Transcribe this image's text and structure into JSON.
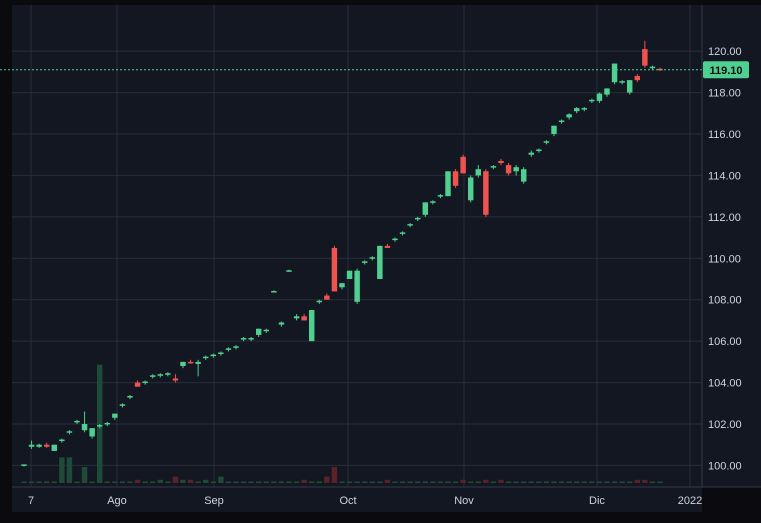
{
  "chart_data": {
    "type": "candlestick",
    "x_tick_labels": [
      "7",
      "Ago",
      "Sep",
      "Oct",
      "Nov",
      "Dic",
      "2022"
    ],
    "y_ticks": [
      100,
      102,
      104,
      106,
      108,
      110,
      112,
      114,
      116,
      118,
      120
    ],
    "y_tick_labels": [
      "100.00",
      "102.00",
      "104.00",
      "106.00",
      "108.00",
      "110.00",
      "112.00",
      "114.00",
      "116.00",
      "118.00",
      "120.00"
    ],
    "ylim": [
      99.2,
      121.6
    ],
    "last_price": 119.1,
    "last_price_label": "119.10",
    "grid": true,
    "colors": {
      "background": "#131722",
      "grid": "#2a2e39",
      "up": "#26a69a",
      "up_candle": "#4fd090",
      "down_candle": "#ef5350",
      "volume_up": "#1f4a3a",
      "volume_down": "#5a2228",
      "price_line": "#4fd090",
      "text": "#d1d4dc"
    },
    "candles": [
      {
        "o": 100.0,
        "h": 100.05,
        "l": 99.95,
        "c": 100.05,
        "v": 0
      },
      {
        "o": 100.9,
        "h": 101.2,
        "l": 100.8,
        "c": 101.0,
        "v": 0
      },
      {
        "o": 100.9,
        "h": 101.05,
        "l": 100.85,
        "c": 101.0,
        "v": 0
      },
      {
        "o": 101.0,
        "h": 101.1,
        "l": 100.85,
        "c": 100.9,
        "v": 0
      },
      {
        "o": 100.7,
        "h": 101.0,
        "l": 100.7,
        "c": 101.0,
        "v": 0
      },
      {
        "o": 101.2,
        "h": 101.3,
        "l": 101.1,
        "c": 101.25,
        "v": 8
      },
      {
        "o": 101.6,
        "h": 101.7,
        "l": 101.5,
        "c": 101.65,
        "v": 8
      },
      {
        "o": 102.1,
        "h": 102.2,
        "l": 102.0,
        "c": 102.15,
        "v": 0
      },
      {
        "o": 101.7,
        "h": 102.6,
        "l": 101.6,
        "c": 102.0,
        "v": 5
      },
      {
        "o": 101.4,
        "h": 101.8,
        "l": 101.3,
        "c": 101.8,
        "v": 0
      },
      {
        "o": 101.9,
        "h": 102.0,
        "l": 101.8,
        "c": 101.95,
        "v": 37
      },
      {
        "o": 102.0,
        "h": 102.1,
        "l": 101.9,
        "c": 102.05,
        "v": 0
      },
      {
        "o": 102.3,
        "h": 102.5,
        "l": 102.2,
        "c": 102.5,
        "v": 0
      },
      {
        "o": 102.9,
        "h": 103.0,
        "l": 102.8,
        "c": 102.95,
        "v": 0
      },
      {
        "o": 103.3,
        "h": 103.4,
        "l": 103.2,
        "c": 103.35,
        "v": 0
      },
      {
        "o": 104.0,
        "h": 104.1,
        "l": 103.8,
        "c": 103.8,
        "v": -1
      },
      {
        "o": 104.0,
        "h": 104.1,
        "l": 103.9,
        "c": 104.05,
        "v": 0
      },
      {
        "o": 104.3,
        "h": 104.4,
        "l": 104.2,
        "c": 104.35,
        "v": 0
      },
      {
        "o": 104.35,
        "h": 104.45,
        "l": 104.25,
        "c": 104.4,
        "v": 1
      },
      {
        "o": 104.4,
        "h": 104.5,
        "l": 104.3,
        "c": 104.45,
        "v": 0
      },
      {
        "o": 104.2,
        "h": 104.4,
        "l": 104.0,
        "c": 104.1,
        "v": -2
      },
      {
        "o": 104.8,
        "h": 105.0,
        "l": 104.7,
        "c": 105.0,
        "v": 1
      },
      {
        "o": 105.0,
        "h": 105.1,
        "l": 104.9,
        "c": 104.95,
        "v": -1
      },
      {
        "o": 104.9,
        "h": 105.1,
        "l": 104.3,
        "c": 105.0,
        "v": 0
      },
      {
        "o": 105.2,
        "h": 105.3,
        "l": 105.1,
        "c": 105.25,
        "v": 1
      },
      {
        "o": 105.3,
        "h": 105.4,
        "l": 105.2,
        "c": 105.35,
        "v": 0
      },
      {
        "o": 105.4,
        "h": 105.5,
        "l": 105.3,
        "c": 105.45,
        "v": 2
      },
      {
        "o": 105.6,
        "h": 105.7,
        "l": 105.5,
        "c": 105.65,
        "v": 0
      },
      {
        "o": 105.7,
        "h": 105.8,
        "l": 105.6,
        "c": 105.75,
        "v": 0
      },
      {
        "o": 106.1,
        "h": 106.2,
        "l": 106.0,
        "c": 106.15,
        "v": 0
      },
      {
        "o": 106.1,
        "h": 106.2,
        "l": 106.0,
        "c": 106.15,
        "v": 0
      },
      {
        "o": 106.3,
        "h": 106.6,
        "l": 106.2,
        "c": 106.6,
        "v": 0
      },
      {
        "o": 106.5,
        "h": 106.6,
        "l": 106.4,
        "c": 106.55,
        "v": 0
      },
      {
        "o": 108.4,
        "h": 108.45,
        "l": 108.35,
        "c": 108.42,
        "v": 0
      },
      {
        "o": 106.8,
        "h": 106.95,
        "l": 106.7,
        "c": 106.9,
        "v": 0
      },
      {
        "o": 109.4,
        "h": 109.45,
        "l": 109.35,
        "c": 109.42,
        "v": 0
      },
      {
        "o": 107.1,
        "h": 107.3,
        "l": 107.0,
        "c": 107.2,
        "v": 0
      },
      {
        "o": 107.2,
        "h": 107.3,
        "l": 107.0,
        "c": 107.0,
        "v": -1
      },
      {
        "o": 106.0,
        "h": 107.5,
        "l": 106.0,
        "c": 107.5,
        "v": 0
      },
      {
        "o": 107.9,
        "h": 108.0,
        "l": 107.8,
        "c": 107.95,
        "v": 0
      },
      {
        "o": 108.2,
        "h": 108.3,
        "l": 108.0,
        "c": 108.0,
        "v": -2
      },
      {
        "o": 110.5,
        "h": 110.6,
        "l": 108.4,
        "c": 108.4,
        "v": -5
      },
      {
        "o": 108.6,
        "h": 108.8,
        "l": 108.5,
        "c": 108.8,
        "v": 0
      },
      {
        "o": 109.0,
        "h": 109.4,
        "l": 109.0,
        "c": 109.4,
        "v": 0
      },
      {
        "o": 107.9,
        "h": 109.5,
        "l": 107.8,
        "c": 109.4,
        "v": 0
      },
      {
        "o": 109.8,
        "h": 109.9,
        "l": 109.7,
        "c": 109.85,
        "v": 0
      },
      {
        "o": 110.0,
        "h": 110.1,
        "l": 109.9,
        "c": 110.05,
        "v": 0
      },
      {
        "o": 109.0,
        "h": 110.6,
        "l": 109.0,
        "c": 110.6,
        "v": 0
      },
      {
        "o": 110.6,
        "h": 110.7,
        "l": 110.5,
        "c": 110.5,
        "v": -1
      },
      {
        "o": 110.9,
        "h": 111.0,
        "l": 110.8,
        "c": 110.95,
        "v": 0
      },
      {
        "o": 111.2,
        "h": 111.3,
        "l": 111.1,
        "c": 111.25,
        "v": 0
      },
      {
        "o": 111.6,
        "h": 111.7,
        "l": 111.5,
        "c": 111.65,
        "v": 0
      },
      {
        "o": 111.9,
        "h": 112.0,
        "l": 111.8,
        "c": 111.95,
        "v": 0
      },
      {
        "o": 112.1,
        "h": 112.7,
        "l": 112.0,
        "c": 112.7,
        "v": 0
      },
      {
        "o": 112.7,
        "h": 112.8,
        "l": 112.6,
        "c": 112.75,
        "v": 0
      },
      {
        "o": 113.0,
        "h": 113.1,
        "l": 112.9,
        "c": 113.05,
        "v": 0
      },
      {
        "o": 113.0,
        "h": 114.2,
        "l": 113.0,
        "c": 114.2,
        "v": 0
      },
      {
        "o": 114.2,
        "h": 114.3,
        "l": 113.4,
        "c": 113.5,
        "v": 0
      },
      {
        "o": 114.9,
        "h": 115.0,
        "l": 114.1,
        "c": 114.1,
        "v": -1
      },
      {
        "o": 112.8,
        "h": 114.0,
        "l": 112.7,
        "c": 113.9,
        "v": 0
      },
      {
        "o": 114.0,
        "h": 114.5,
        "l": 113.9,
        "c": 114.3,
        "v": 0
      },
      {
        "o": 114.2,
        "h": 114.3,
        "l": 112.0,
        "c": 112.1,
        "v": -1
      },
      {
        "o": 114.4,
        "h": 114.5,
        "l": 114.3,
        "c": 114.45,
        "v": 0
      },
      {
        "o": 114.7,
        "h": 114.8,
        "l": 114.5,
        "c": 114.6,
        "v": -1
      },
      {
        "o": 114.5,
        "h": 114.6,
        "l": 114.0,
        "c": 114.1,
        "v": 0
      },
      {
        "o": 114.2,
        "h": 114.5,
        "l": 114.0,
        "c": 114.4,
        "v": 0
      },
      {
        "o": 113.7,
        "h": 114.4,
        "l": 113.6,
        "c": 114.3,
        "v": 0
      },
      {
        "o": 115.0,
        "h": 115.2,
        "l": 114.9,
        "c": 115.1,
        "v": 0
      },
      {
        "o": 115.2,
        "h": 115.3,
        "l": 115.1,
        "c": 115.25,
        "v": 0
      },
      {
        "o": 115.6,
        "h": 115.7,
        "l": 115.5,
        "c": 115.65,
        "v": 0
      },
      {
        "o": 116.0,
        "h": 116.4,
        "l": 115.9,
        "c": 116.4,
        "v": 0
      },
      {
        "o": 116.6,
        "h": 116.7,
        "l": 116.5,
        "c": 116.65,
        "v": 0
      },
      {
        "o": 116.8,
        "h": 117.0,
        "l": 116.7,
        "c": 116.95,
        "v": 0
      },
      {
        "o": 117.1,
        "h": 117.3,
        "l": 117.0,
        "c": 117.25,
        "v": 0
      },
      {
        "o": 117.2,
        "h": 117.3,
        "l": 117.1,
        "c": 117.25,
        "v": 0
      },
      {
        "o": 117.6,
        "h": 117.7,
        "l": 117.5,
        "c": 117.65,
        "v": 0
      },
      {
        "o": 117.6,
        "h": 118.0,
        "l": 117.5,
        "c": 117.95,
        "v": 0
      },
      {
        "o": 117.9,
        "h": 118.2,
        "l": 117.8,
        "c": 118.2,
        "v": 0
      },
      {
        "o": 118.5,
        "h": 119.4,
        "l": 118.4,
        "c": 119.4,
        "v": 0
      },
      {
        "o": 118.5,
        "h": 118.6,
        "l": 118.4,
        "c": 118.55,
        "v": 0
      },
      {
        "o": 118.0,
        "h": 118.6,
        "l": 117.9,
        "c": 118.6,
        "v": 0
      },
      {
        "o": 118.8,
        "h": 118.9,
        "l": 118.5,
        "c": 118.6,
        "v": -1
      },
      {
        "o": 120.1,
        "h": 120.5,
        "l": 119.2,
        "c": 119.3,
        "v": -1
      },
      {
        "o": 119.2,
        "h": 119.3,
        "l": 119.1,
        "c": 119.25,
        "v": 0
      },
      {
        "o": 119.15,
        "h": 119.2,
        "l": 119.05,
        "c": 119.1,
        "v": 0
      }
    ]
  }
}
